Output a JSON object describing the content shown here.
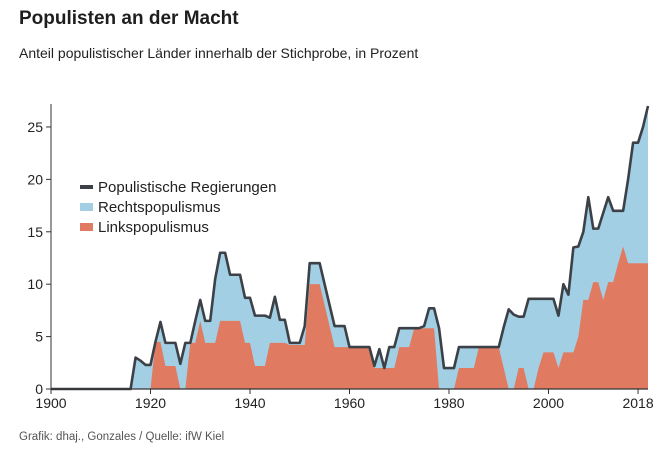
{
  "chart_data": {
    "type": "area",
    "title": "Populisten an der Macht",
    "subtitle": "Anteil populistischer Länder innerhalb der Stichprobe, in Prozent",
    "source": "Grafik: dhaj., Gonzales / Quelle: ifW Kiel",
    "xlabel": "",
    "ylabel": "",
    "xlim": [
      1900,
      2020
    ],
    "ylim": [
      0,
      27
    ],
    "x_ticks": [
      1900,
      1920,
      1940,
      1960,
      1980,
      2000,
      2018
    ],
    "y_ticks": [
      0,
      5,
      10,
      15,
      20,
      25
    ],
    "grid": false,
    "legend_position": "left",
    "colors": {
      "total": "#3c4148",
      "rechts": "#a2cfe4",
      "links": "#e07b62"
    },
    "series": [
      {
        "name": "Populistische Regierungen",
        "kind": "line",
        "x": [
          1900,
          1916,
          1917,
          1918,
          1919,
          1920,
          1921,
          1922,
          1923,
          1924,
          1925,
          1926,
          1927,
          1928,
          1929,
          1930,
          1931,
          1932,
          1933,
          1934,
          1935,
          1936,
          1937,
          1938,
          1939,
          1940,
          1941,
          1942,
          1943,
          1944,
          1945,
          1946,
          1947,
          1948,
          1949,
          1950,
          1951,
          1952,
          1953,
          1954,
          1955,
          1956,
          1957,
          1958,
          1959,
          1960,
          1961,
          1962,
          1963,
          1964,
          1965,
          1966,
          1967,
          1968,
          1969,
          1970,
          1971,
          1972,
          1973,
          1974,
          1975,
          1976,
          1977,
          1978,
          1979,
          1980,
          1981,
          1982,
          1983,
          1984,
          1985,
          1986,
          1987,
          1988,
          1989,
          1990,
          1991,
          1992,
          1993,
          1994,
          1995,
          1996,
          1997,
          1998,
          1999,
          2000,
          2001,
          2002,
          2003,
          2004,
          2005,
          2006,
          2007,
          2008,
          2009,
          2010,
          2011,
          2012,
          2013,
          2014,
          2015,
          2016,
          2017,
          2018,
          2019,
          2020
        ],
        "values": [
          0,
          0,
          3,
          2.7,
          2.3,
          2.3,
          4.5,
          6.4,
          4.4,
          4.4,
          4.4,
          2.4,
          4.4,
          4.4,
          6.5,
          8.5,
          6.5,
          6.5,
          10.5,
          13,
          13,
          10.9,
          10.9,
          10.9,
          8.7,
          8.7,
          7,
          7,
          7,
          6.8,
          8.8,
          6.6,
          6.6,
          4.4,
          4.4,
          4.4,
          6,
          12,
          12,
          12,
          10,
          8,
          6,
          6,
          6,
          4,
          4,
          4,
          4,
          4,
          2.2,
          3.8,
          2,
          4,
          4,
          5.8,
          5.8,
          5.8,
          5.8,
          5.8,
          6,
          7.7,
          7.7,
          5.8,
          2,
          2,
          2,
          4,
          4,
          4,
          4,
          4,
          4,
          4,
          4,
          4,
          5.9,
          7.6,
          7.1,
          6.9,
          6.9,
          8.6,
          8.6,
          8.6,
          8.6,
          8.6,
          8.6,
          7,
          10,
          9,
          13.5,
          13.6,
          15,
          18.3,
          15.3,
          15.3,
          16.8,
          18.3,
          17,
          17,
          17,
          20,
          23.5,
          23.5,
          25,
          27
        ]
      },
      {
        "name": "Rechtspopulismus",
        "kind": "area",
        "note_stack": "stacked on Linkspopulismus; top edge equals total",
        "x": [
          1900,
          1916,
          1917,
          1918,
          1919,
          1920,
          1921,
          1922,
          1923,
          1924,
          1925,
          1926,
          1927,
          1928,
          1929,
          1930,
          1931,
          1932,
          1933,
          1934,
          1935,
          1936,
          1937,
          1938,
          1939,
          1940,
          1941,
          1942,
          1943,
          1944,
          1945,
          1946,
          1947,
          1948,
          1949,
          1950,
          1951,
          1952,
          1953,
          1954,
          1955,
          1956,
          1957,
          1958,
          1959,
          1960,
          1961,
          1962,
          1963,
          1964,
          1965,
          1966,
          1967,
          1968,
          1969,
          1970,
          1971,
          1972,
          1973,
          1974,
          1975,
          1976,
          1977,
          1978,
          1979,
          1980,
          1981,
          1982,
          1983,
          1984,
          1985,
          1986,
          1987,
          1988,
          1989,
          1990,
          1991,
          1992,
          1993,
          1994,
          1995,
          1996,
          1997,
          1998,
          1999,
          2000,
          2001,
          2002,
          2003,
          2004,
          2005,
          2006,
          2007,
          2008,
          2009,
          2010,
          2011,
          2012,
          2013,
          2014,
          2015,
          2016,
          2017,
          2018,
          2019,
          2020
        ],
        "values": [
          0,
          0,
          3,
          2.7,
          2.3,
          2.3,
          4.5,
          6.4,
          4.4,
          4.4,
          4.4,
          2.4,
          4.4,
          4.4,
          6.5,
          8.5,
          6.5,
          6.5,
          10.5,
          13,
          13,
          10.9,
          10.9,
          10.9,
          8.7,
          8.7,
          7,
          7,
          7,
          6.8,
          8.8,
          6.6,
          6.6,
          4.4,
          4.4,
          4.4,
          6,
          12,
          12,
          12,
          10,
          8,
          6,
          6,
          6,
          4,
          4,
          4,
          4,
          4,
          2.2,
          3.8,
          2,
          4,
          4,
          5.8,
          5.8,
          5.8,
          5.8,
          5.8,
          6,
          7.7,
          7.7,
          5.8,
          2,
          2,
          2,
          4,
          4,
          4,
          4,
          4,
          4,
          4,
          4,
          4,
          5.9,
          7.6,
          7.1,
          6.9,
          6.9,
          8.6,
          8.6,
          8.6,
          8.6,
          8.6,
          8.6,
          7,
          10,
          9,
          13.5,
          13.6,
          15,
          18.3,
          15.3,
          15.3,
          16.8,
          18.3,
          17,
          17,
          17,
          20,
          23.5,
          23.5,
          25,
          27
        ]
      },
      {
        "name": "Linkspopulismus",
        "kind": "area",
        "x": [
          1900,
          1916,
          1917,
          1918,
          1919,
          1920,
          1921,
          1922,
          1923,
          1924,
          1925,
          1926,
          1927,
          1928,
          1929,
          1930,
          1931,
          1932,
          1933,
          1934,
          1935,
          1936,
          1937,
          1938,
          1939,
          1940,
          1941,
          1942,
          1943,
          1944,
          1945,
          1946,
          1947,
          1948,
          1949,
          1950,
          1951,
          1952,
          1953,
          1954,
          1955,
          1956,
          1957,
          1958,
          1959,
          1960,
          1961,
          1962,
          1963,
          1964,
          1965,
          1966,
          1967,
          1968,
          1969,
          1970,
          1971,
          1972,
          1973,
          1974,
          1975,
          1976,
          1977,
          1978,
          1979,
          1980,
          1981,
          1982,
          1983,
          1984,
          1985,
          1986,
          1987,
          1988,
          1989,
          1990,
          1991,
          1992,
          1993,
          1994,
          1995,
          1996,
          1997,
          1998,
          1999,
          2000,
          2001,
          2002,
          2003,
          2004,
          2005,
          2006,
          2007,
          2008,
          2009,
          2010,
          2011,
          2012,
          2013,
          2014,
          2015,
          2016,
          2017,
          2018,
          2019,
          2020
        ],
        "values": [
          0,
          0,
          0,
          0,
          0,
          0,
          4.5,
          4.5,
          2.2,
          2.2,
          2.2,
          0,
          0,
          4.4,
          4.4,
          6.5,
          4.4,
          4.4,
          4.4,
          6.5,
          6.5,
          6.5,
          6.5,
          6.5,
          4.4,
          4.4,
          2.2,
          2.2,
          2.2,
          4.4,
          4.4,
          4.4,
          4.4,
          4.2,
          4.2,
          4.2,
          4.2,
          10,
          10,
          10,
          8,
          6,
          4,
          4,
          4,
          4,
          4,
          4,
          4,
          4,
          2,
          2,
          2,
          2,
          2,
          4,
          4,
          4,
          5.8,
          5.8,
          5.8,
          5.8,
          5.8,
          0,
          0,
          0,
          0,
          2,
          2,
          2,
          2,
          4,
          4,
          4,
          4,
          4,
          2,
          0,
          0,
          2,
          2,
          0,
          0,
          2,
          3.5,
          3.5,
          3.5,
          2,
          3.5,
          3.5,
          3.5,
          5,
          8.5,
          8.5,
          10.2,
          10.2,
          8.5,
          10.2,
          10.2,
          12,
          13.6,
          12,
          12,
          12,
          12,
          12
        ]
      }
    ]
  }
}
